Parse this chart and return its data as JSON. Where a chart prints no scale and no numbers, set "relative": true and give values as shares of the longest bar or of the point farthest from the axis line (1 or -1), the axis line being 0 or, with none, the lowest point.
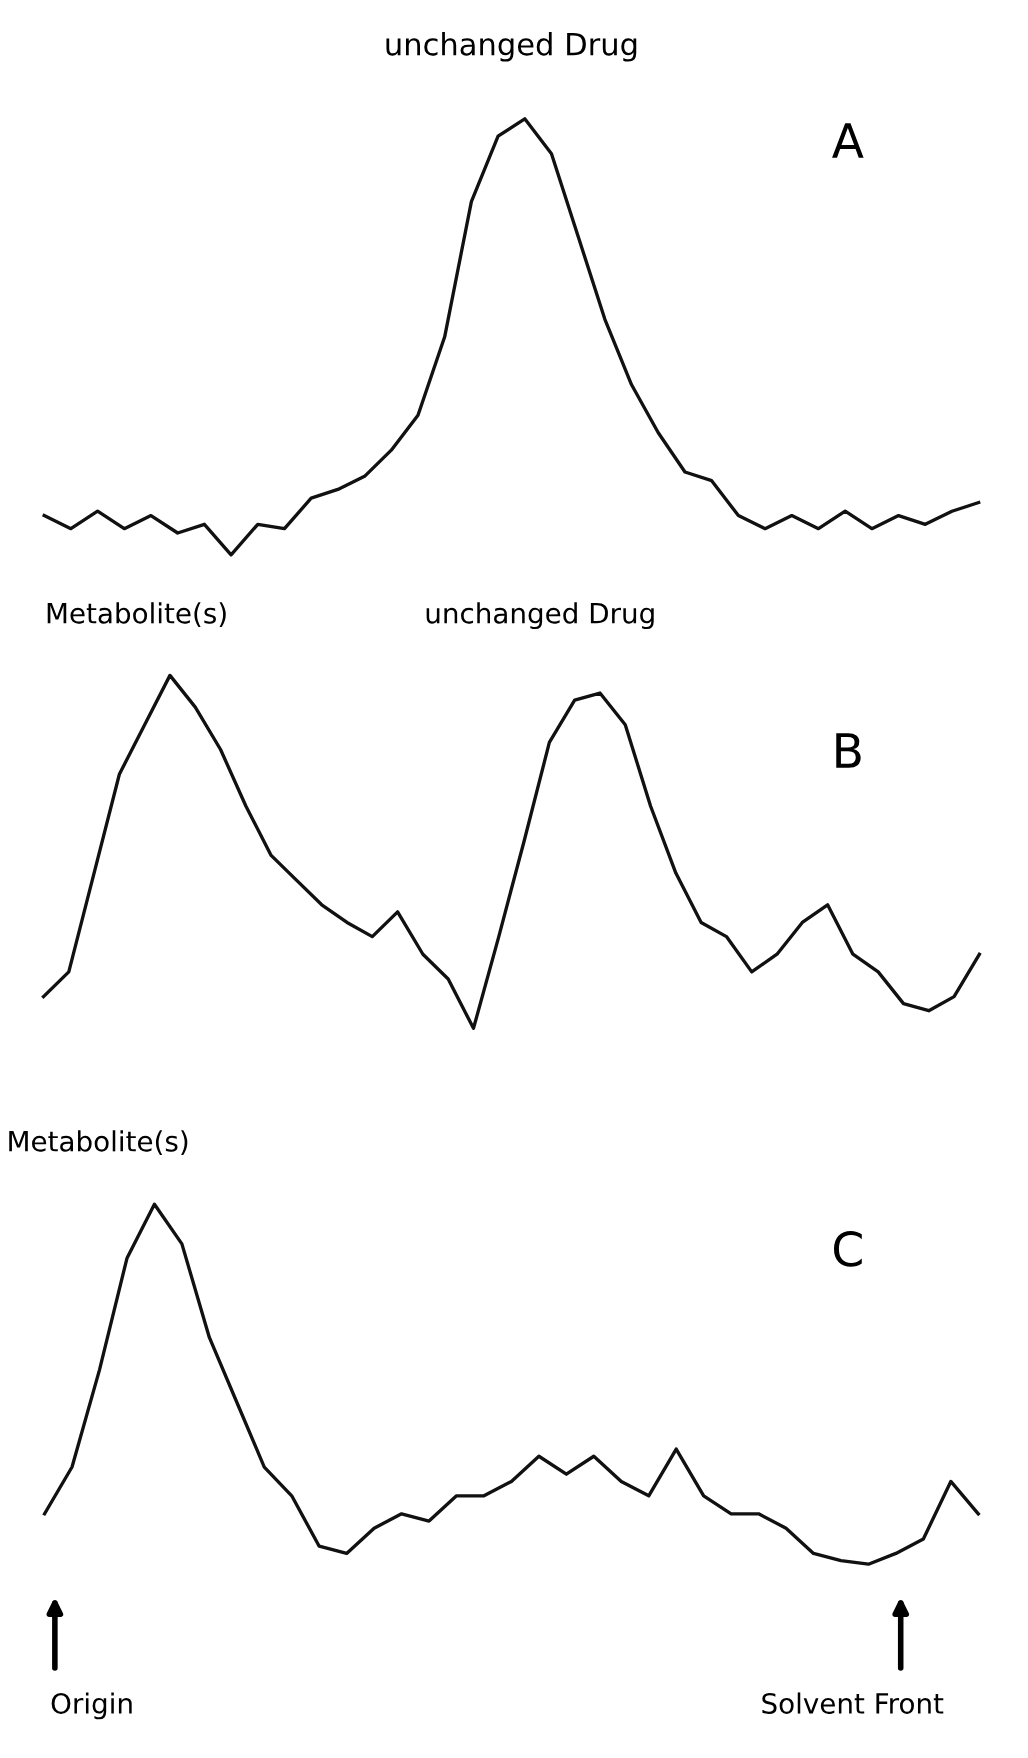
{
  "chart_data": [
    {
      "type": "line",
      "relative": true,
      "categories": [
        null,
        null,
        null,
        null,
        null,
        null,
        null,
        null,
        null,
        null,
        null,
        null,
        null,
        null,
        null,
        null,
        null,
        null,
        null,
        null,
        null,
        null,
        null,
        null,
        null,
        null,
        null,
        null,
        null,
        null,
        null,
        null,
        null,
        null,
        null,
        null
      ],
      "series": [
        {
          "color": "#111111",
          "values": [
            0.09,
            0.06,
            0.1,
            0.06,
            0.09,
            0.05,
            0.07,
            0.0,
            0.07,
            0.06,
            0.13,
            0.15,
            0.18,
            0.24,
            0.32,
            0.5,
            0.81,
            0.96,
            1.0,
            0.92,
            0.73,
            0.54,
            0.39,
            0.28,
            0.19,
            0.17,
            0.09,
            0.06,
            0.09,
            0.06,
            0.1,
            0.06,
            0.09,
            0.07,
            0.1,
            0.12
          ]
        }
      ],
      "annotations": [
        "unchanged Drug",
        "A"
      ]
    },
    {
      "type": "line",
      "relative": true,
      "categories": [
        null,
        null,
        null,
        null,
        null,
        null,
        null,
        null,
        null,
        null,
        null,
        null,
        null,
        null,
        null,
        null,
        null,
        null,
        null,
        null,
        null,
        null,
        null,
        null,
        null,
        null,
        null,
        null,
        null,
        null,
        null,
        null,
        null,
        null,
        null,
        null,
        null,
        null
      ],
      "series": [
        {
          "color": "#111111",
          "values": [
            0.09,
            0.16,
            0.44,
            0.72,
            0.86,
            1.0,
            0.91,
            0.79,
            0.63,
            0.49,
            0.42,
            0.35,
            0.3,
            0.26,
            0.33,
            0.21,
            0.14,
            0.0,
            0.26,
            0.53,
            0.81,
            0.93,
            0.95,
            0.86,
            0.63,
            0.44,
            0.3,
            0.26,
            0.16,
            0.21,
            0.3,
            0.35,
            0.21,
            0.16,
            0.07,
            0.05,
            0.09,
            0.21
          ]
        }
      ],
      "annotations": [
        "Metabolite(s)",
        "unchanged Drug",
        "B"
      ]
    },
    {
      "type": "line",
      "relative": true,
      "categories": [
        null,
        null,
        null,
        null,
        null,
        null,
        null,
        null,
        null,
        null,
        null,
        null,
        null,
        null,
        null,
        null,
        null,
        null,
        null,
        null,
        null,
        null,
        null,
        null,
        null,
        null,
        null,
        null,
        null,
        null,
        null,
        null,
        null,
        null,
        null
      ],
      "series": [
        {
          "color": "#111111",
          "values": [
            0.14,
            0.27,
            0.54,
            0.85,
            1.0,
            0.89,
            0.63,
            0.45,
            0.27,
            0.19,
            0.05,
            0.03,
            0.1,
            0.14,
            0.12,
            0.19,
            0.19,
            0.23,
            0.3,
            0.25,
            0.3,
            0.23,
            0.19,
            0.32,
            0.19,
            0.14,
            0.14,
            0.1,
            0.03,
            0.01,
            0.0,
            0.03,
            0.07,
            0.23,
            0.14
          ]
        }
      ],
      "annotations": [
        "Metabolite(s)",
        "C",
        "Origin",
        "Solvent Front"
      ]
    }
  ]
}
